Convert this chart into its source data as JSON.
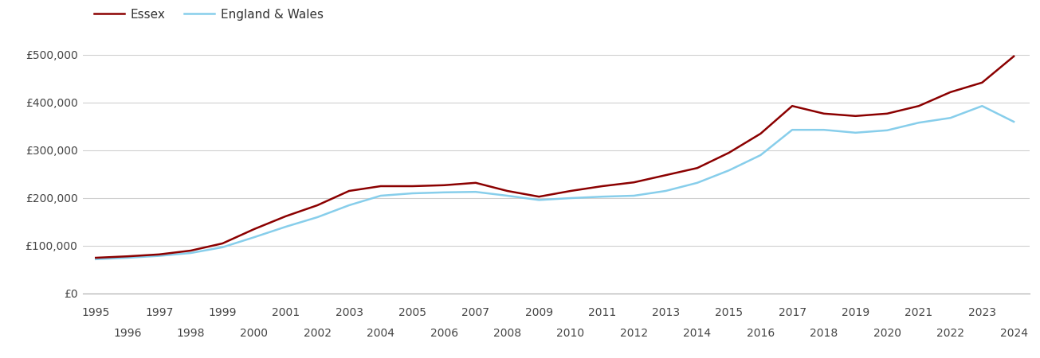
{
  "essex_color": "#8B0000",
  "england_wales_color": "#87CEEB",
  "background_color": "#ffffff",
  "legend_labels": [
    "Essex",
    "England & Wales"
  ],
  "years": [
    1995,
    1996,
    1997,
    1998,
    1999,
    2000,
    2001,
    2002,
    2003,
    2004,
    2005,
    2006,
    2007,
    2008,
    2009,
    2010,
    2011,
    2012,
    2013,
    2014,
    2015,
    2016,
    2017,
    2018,
    2019,
    2020,
    2021,
    2022,
    2023,
    2024
  ],
  "essex": [
    75000,
    78000,
    82000,
    90000,
    105000,
    135000,
    162000,
    185000,
    215000,
    225000,
    225000,
    227000,
    232000,
    215000,
    203000,
    215000,
    225000,
    233000,
    248000,
    263000,
    295000,
    335000,
    393000,
    377000,
    372000,
    377000,
    393000,
    422000,
    442000,
    497000
  ],
  "england_wales": [
    72000,
    75000,
    79000,
    85000,
    97000,
    118000,
    140000,
    160000,
    185000,
    205000,
    210000,
    212000,
    213000,
    205000,
    196000,
    200000,
    203000,
    205000,
    215000,
    232000,
    258000,
    290000,
    343000,
    343000,
    337000,
    342000,
    358000,
    368000,
    393000,
    360000
  ],
  "ylim": [
    0,
    525000
  ],
  "yticks": [
    0,
    100000,
    200000,
    300000,
    400000,
    500000
  ],
  "ytick_labels": [
    "£0",
    "£100,000",
    "£200,000",
    "£300,000",
    "£400,000",
    "£500,000"
  ],
  "line_width": 1.8,
  "grid_color": "#d0d0d0",
  "axis_color": "#aaaaaa",
  "tick_label_color": "#444444",
  "tick_fontsize": 10,
  "legend_fontsize": 11
}
